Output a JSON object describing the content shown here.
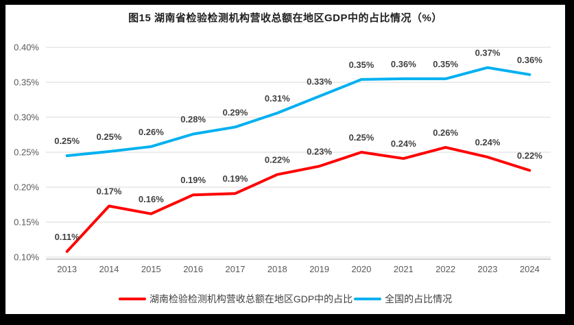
{
  "title": "图15 湖南省检验检测机构营收总额在地区GDP中的占比情况（%）",
  "colors": {
    "hunan_series": "#FF0000",
    "national_series": "#00B0F0",
    "gridline": "#D9D9D9",
    "axis_line": "#BFBFBF",
    "axis_text": "#595959",
    "data_label_text": "#404040",
    "background": "#FFFFFF",
    "frame_border": "#000000"
  },
  "legend": [
    {
      "label": "湖南检验检测机构营收总额在地区GDP中的占比",
      "color": "#FF0000"
    },
    {
      "label": "全国的占比情况",
      "color": "#00B0F0"
    }
  ],
  "chart_data": {
    "type": "line",
    "title": "图15 湖南省检验检测机构营收总额在地区GDP中的占比情况（%）",
    "categories": [
      "2013",
      "2014",
      "2015",
      "2016",
      "2017",
      "2018",
      "2019",
      "2020",
      "2021",
      "2022",
      "2023",
      "2024"
    ],
    "series": [
      {
        "name": "湖南检验检测机构营收总额在地区GDP中的占比",
        "color": "#FF0000",
        "values": [
          0.11,
          0.17,
          0.16,
          0.19,
          0.19,
          0.22,
          0.23,
          0.25,
          0.24,
          0.26,
          0.24,
          0.22
        ],
        "labels": [
          "0.11%",
          "0.17%",
          "0.16%",
          "0.19%",
          "0.19%",
          "0.22%",
          "0.23%",
          "0.25%",
          "0.24%",
          "0.26%",
          "0.24%",
          "0.22%"
        ],
        "plot_values": [
          0.108,
          0.173,
          0.162,
          0.189,
          0.191,
          0.218,
          0.23,
          0.25,
          0.241,
          0.257,
          0.243,
          0.224
        ]
      },
      {
        "name": "全国的占比情况",
        "color": "#00B0F0",
        "values": [
          0.25,
          0.25,
          0.26,
          0.28,
          0.29,
          0.31,
          0.33,
          0.35,
          0.36,
          0.35,
          0.37,
          0.36
        ],
        "labels": [
          "0.25%",
          "0.25%",
          "0.26%",
          "0.28%",
          "0.29%",
          "0.31%",
          "0.33%",
          "0.35%",
          "0.36%",
          "0.35%",
          "0.37%",
          "0.36%"
        ],
        "plot_values": [
          0.245,
          0.251,
          0.258,
          0.276,
          0.286,
          0.306,
          0.33,
          0.354,
          0.355,
          0.355,
          0.371,
          0.361
        ]
      }
    ],
    "xlabel": "",
    "ylabel": "",
    "unit": "%",
    "y_ticks": [
      "0.40%",
      "0.35%",
      "0.30%",
      "0.25%",
      "0.20%",
      "0.15%",
      "0.10%"
    ],
    "ylim": [
      0.1,
      0.4
    ],
    "grid": true,
    "grid_axis": "y",
    "legend_position": "bottom"
  }
}
